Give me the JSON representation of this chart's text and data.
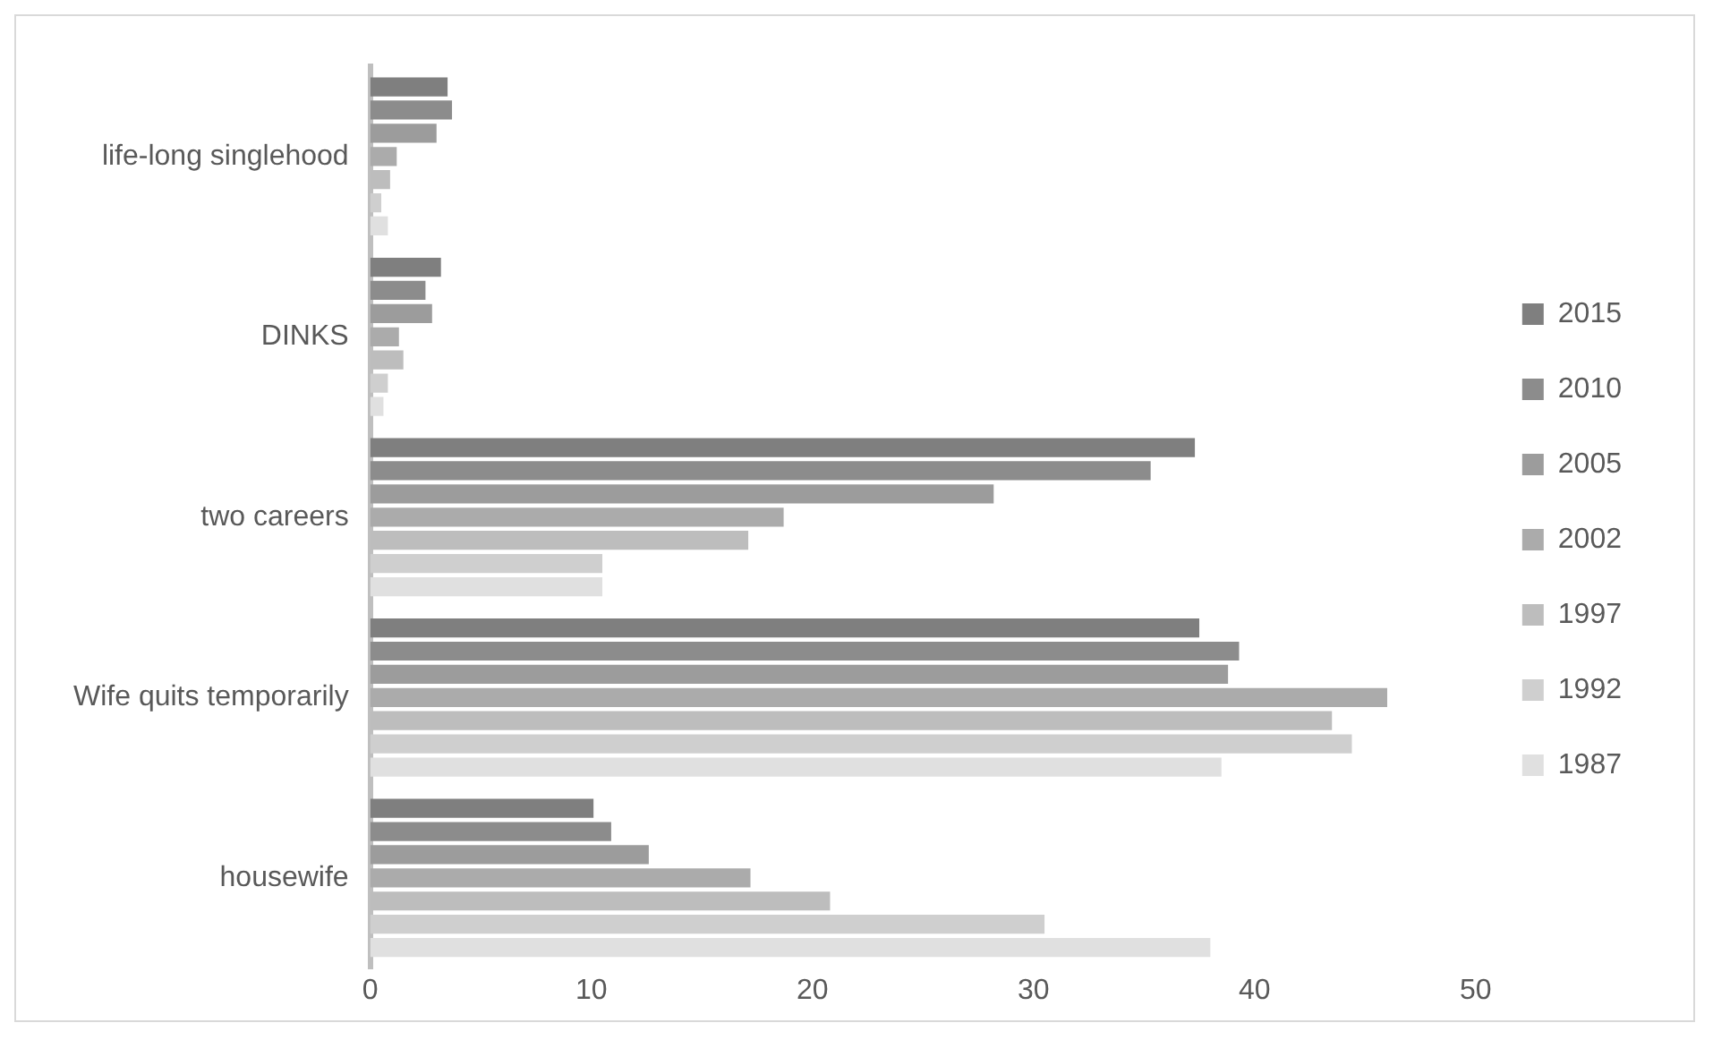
{
  "chart_data": {
    "type": "bar",
    "orientation": "horizontal",
    "categories": [
      "life-long singlehood",
      "DINKS",
      "two careers",
      "Wife quits temporarily",
      "housewife"
    ],
    "series": [
      {
        "name": "2015",
        "color": "#7f7f7f",
        "values": [
          3.5,
          3.2,
          37.3,
          37.5,
          10.1
        ]
      },
      {
        "name": "2010",
        "color": "#8c8c8c",
        "values": [
          3.7,
          2.5,
          35.3,
          39.3,
          10.9
        ]
      },
      {
        "name": "2005",
        "color": "#9c9c9c",
        "values": [
          3.0,
          2.8,
          28.2,
          38.8,
          12.6
        ]
      },
      {
        "name": "2002",
        "color": "#ababab",
        "values": [
          1.2,
          1.3,
          18.7,
          46.0,
          17.2
        ]
      },
      {
        "name": "1997",
        "color": "#bdbdbd",
        "values": [
          0.9,
          1.5,
          17.1,
          43.5,
          20.8
        ]
      },
      {
        "name": "1992",
        "color": "#cfcfcf",
        "values": [
          0.5,
          0.8,
          10.5,
          44.4,
          30.5
        ]
      },
      {
        "name": "1987",
        "color": "#e0e0e0",
        "values": [
          0.8,
          0.6,
          10.5,
          38.5,
          38.0
        ]
      }
    ],
    "xlim": [
      0,
      50
    ],
    "xticks": [
      0,
      10,
      20,
      30,
      40,
      50
    ],
    "grid": false,
    "legend": "right"
  }
}
